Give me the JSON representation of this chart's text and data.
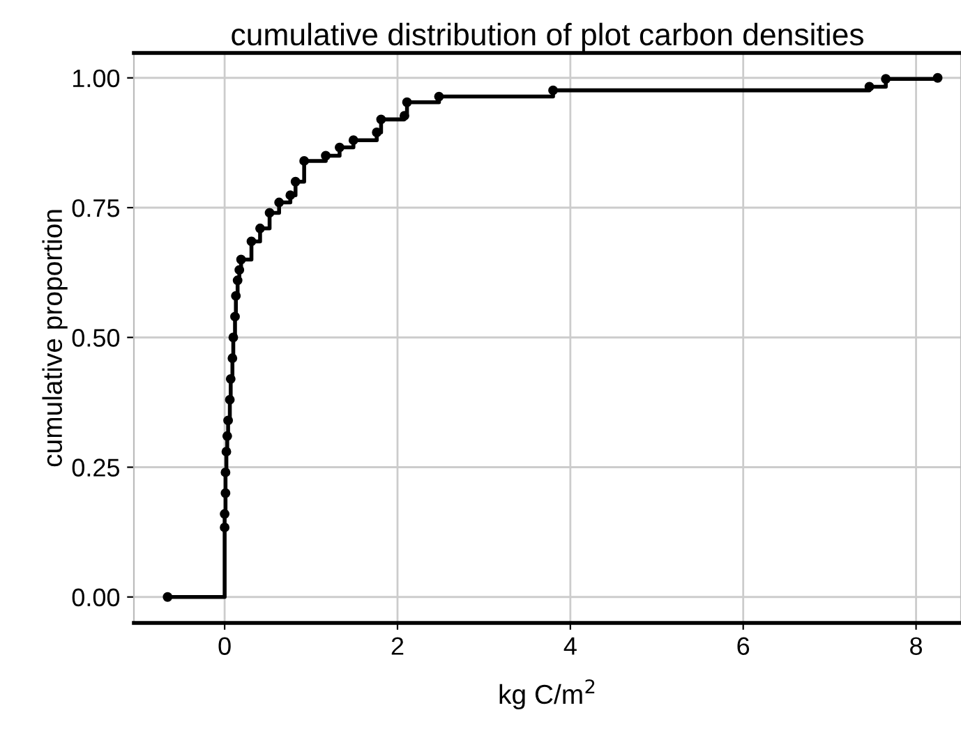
{
  "chart_data": {
    "type": "step",
    "title": "cumulative distribution of plot carbon densities",
    "xlabel": "kg C/m$^{2}$",
    "ylabel": "cumulative proportion",
    "x": [
      -0.66,
      0.0,
      0.0,
      0.01,
      0.01,
      0.02,
      0.03,
      0.04,
      0.06,
      0.07,
      0.09,
      0.1,
      0.12,
      0.13,
      0.15,
      0.17,
      0.19,
      0.31,
      0.41,
      0.52,
      0.63,
      0.76,
      0.82,
      0.92,
      1.17,
      1.33,
      1.49,
      1.76,
      1.81,
      2.08,
      2.11,
      2.48,
      3.8,
      7.46,
      7.65,
      8.25
    ],
    "series": [
      {
        "color": "#000000",
        "values": [
          0.0,
          0.134,
          0.16,
          0.2,
          0.24,
          0.28,
          0.31,
          0.34,
          0.38,
          0.42,
          0.46,
          0.5,
          0.54,
          0.58,
          0.61,
          0.63,
          0.65,
          0.685,
          0.71,
          0.74,
          0.76,
          0.774,
          0.8,
          0.84,
          0.85,
          0.866,
          0.88,
          0.895,
          0.92,
          0.927,
          0.953,
          0.964,
          0.976,
          0.983,
          0.998,
          1.0
        ]
      }
    ],
    "xlim": [
      -1.05,
      8.52
    ],
    "ylim": [
      -0.05,
      1.048
    ],
    "xticks": [
      0,
      2,
      4,
      6,
      8
    ],
    "yticks": [
      {
        "value": 0,
        "label": "0.00"
      },
      {
        "value": 0.25,
        "label": "0.25"
      },
      {
        "value": 0.5,
        "label": "0.50"
      },
      {
        "value": 0.75,
        "label": "0.75"
      },
      {
        "value": 1,
        "label": "1.00"
      }
    ],
    "grid": true,
    "marker": "circle",
    "line_style": "solid"
  }
}
